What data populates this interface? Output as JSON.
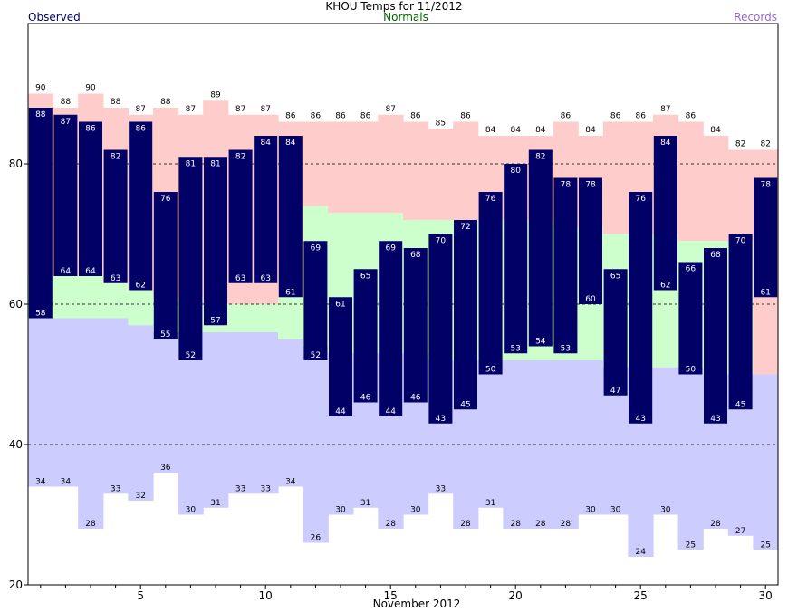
{
  "chart_data": {
    "type": "bar",
    "title": "KHOU Temps for 11/2012",
    "xlabel": "November 2012",
    "ylabel": "",
    "legend": [
      "Observed",
      "Normals",
      "Records"
    ],
    "legend_placement": "top",
    "xlim": [
      0.5,
      30.5
    ],
    "ylim": [
      20,
      100
    ],
    "x_ticks": [
      5,
      10,
      15,
      20,
      25,
      30
    ],
    "y_ticks": [
      20,
      40,
      60,
      80
    ],
    "grid_lines_y": [
      40,
      60,
      80
    ],
    "days": [
      1,
      2,
      3,
      4,
      5,
      6,
      7,
      8,
      9,
      10,
      11,
      12,
      13,
      14,
      15,
      16,
      17,
      18,
      19,
      20,
      21,
      22,
      23,
      24,
      25,
      26,
      27,
      28,
      29,
      30
    ],
    "series": [
      {
        "name": "Observed",
        "role": "observed_high",
        "color": "#000066",
        "values": [
          88,
          87,
          86,
          82,
          86,
          76,
          81,
          81,
          82,
          84,
          84,
          69,
          61,
          65,
          69,
          68,
          70,
          72,
          76,
          80,
          82,
          78,
          78,
          65,
          76,
          84,
          66,
          68,
          70,
          78
        ]
      },
      {
        "name": "Observed",
        "role": "observed_low",
        "color": "#000066",
        "values": [
          58,
          64,
          64,
          63,
          62,
          55,
          52,
          57,
          63,
          63,
          61,
          52,
          44,
          46,
          44,
          46,
          43,
          45,
          50,
          53,
          54,
          53,
          60,
          47,
          43,
          62,
          50,
          43,
          45,
          61
        ]
      },
      {
        "name": "Normals",
        "role": "normal_high",
        "color": "#ccffcc",
        "values": [
          64,
          64,
          64,
          63,
          62,
          61,
          61,
          60,
          60,
          60,
          61,
          74,
          73,
          73,
          73,
          72,
          72,
          72,
          72,
          72,
          72,
          71,
          71,
          70,
          70,
          70,
          69,
          69,
          69,
          50
        ]
      },
      {
        "name": "Normals",
        "role": "normal_low",
        "color": "#ccffcc",
        "values": [
          58,
          58,
          58,
          58,
          57,
          56,
          56,
          56,
          56,
          56,
          55,
          54,
          53,
          53,
          53,
          53,
          52,
          52,
          52,
          52,
          52,
          52,
          52,
          51,
          51,
          51,
          51,
          50,
          50,
          50
        ]
      },
      {
        "name": "Records",
        "role": "record_high",
        "color": "#ffcccc",
        "values": [
          90,
          88,
          90,
          88,
          87,
          88,
          87,
          89,
          87,
          87,
          86,
          86,
          86,
          86,
          87,
          86,
          85,
          86,
          84,
          84,
          84,
          86,
          84,
          86,
          86,
          87,
          86,
          84,
          82,
          82
        ]
      },
      {
        "name": "Records",
        "role": "record_low",
        "color": "#ccccff",
        "values": [
          34,
          34,
          28,
          33,
          32,
          36,
          30,
          31,
          33,
          33,
          34,
          26,
          30,
          31,
          28,
          30,
          33,
          28,
          31,
          28,
          28,
          28,
          30,
          30,
          24,
          30,
          25,
          28,
          27,
          25
        ]
      }
    ]
  },
  "colors": {
    "observed": "#000066",
    "observed_label": "#ffffff",
    "normals_band": "#ccffcc",
    "record_high_band": "#ffcccc",
    "record_low_band": "#ccccff",
    "normals_text": "#006600",
    "records_text": "#9966cc"
  }
}
